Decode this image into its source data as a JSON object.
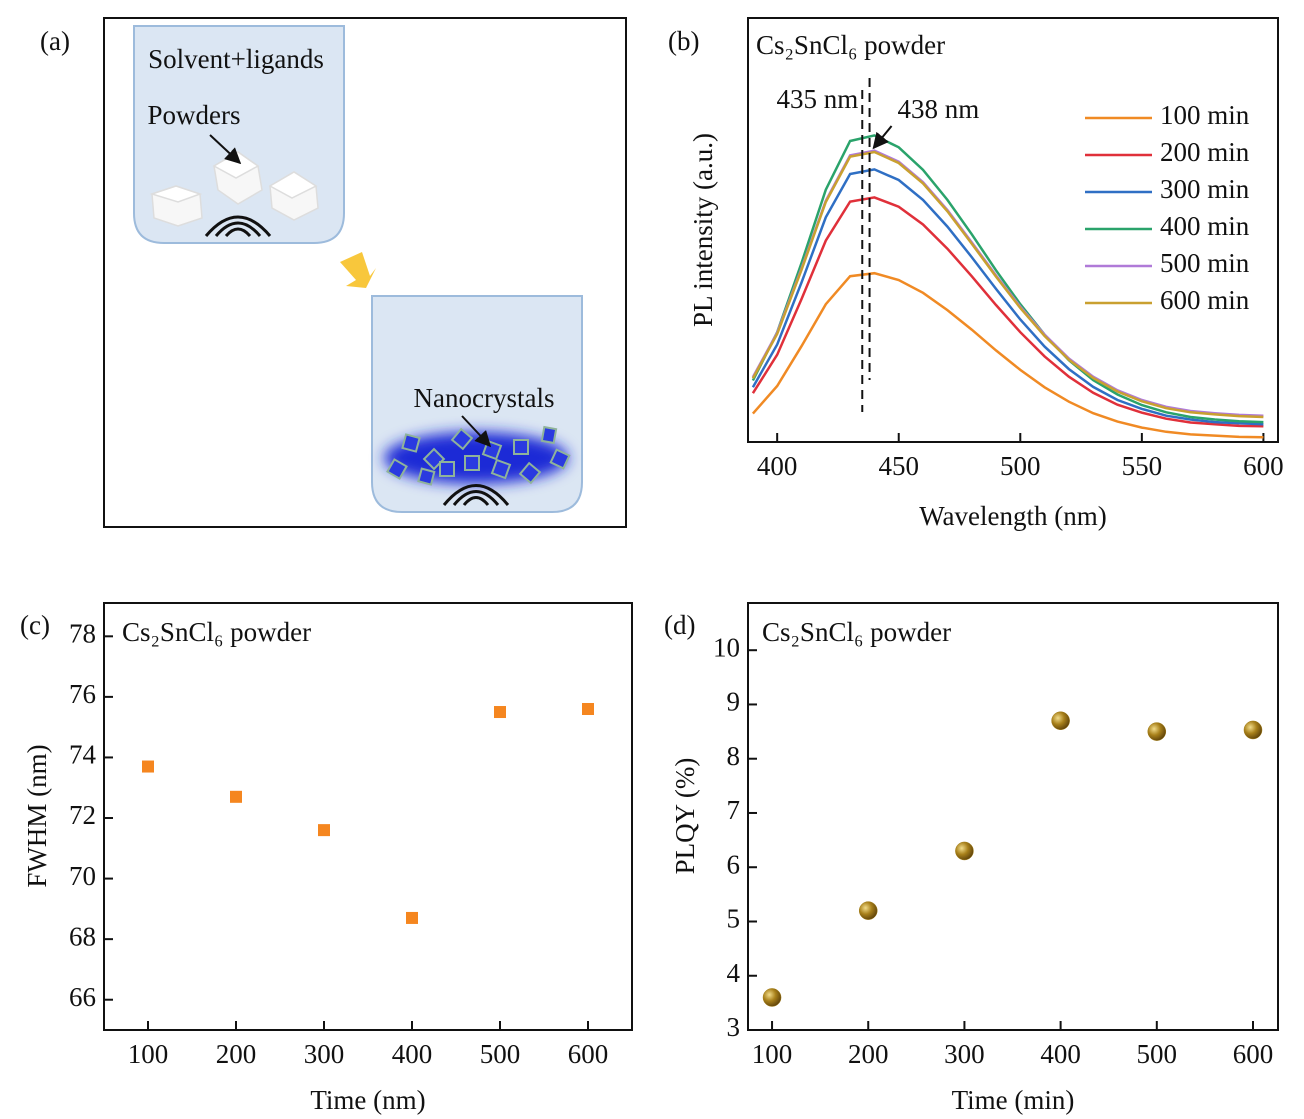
{
  "diagram": {
    "panel_label": "(a)",
    "solvent_label": "Solvent+ligands",
    "powder_label": "Powders",
    "product_label": "Nanocrystals"
  },
  "chart_data": [
    {
      "type": "line",
      "panel_label": "(b)",
      "title": "Cs₂SnCl₆ powder",
      "xlabel": "Wavelength (nm)",
      "ylabel": "PL intensity (a.u.)",
      "x": [
        390,
        400,
        410,
        420,
        430,
        440,
        450,
        460,
        470,
        480,
        490,
        500,
        510,
        520,
        530,
        540,
        550,
        560,
        570,
        580,
        590,
        600
      ],
      "xlim": [
        388,
        606
      ],
      "xticks": [
        400,
        450,
        500,
        550,
        600
      ],
      "ylim": [
        0,
        1
      ],
      "legend": "upper right",
      "series": [
        {
          "name": "100 min",
          "color": "#f08a24",
          "values": [
            0.067,
            0.132,
            0.226,
            0.325,
            0.391,
            0.398,
            0.382,
            0.352,
            0.311,
            0.265,
            0.216,
            0.17,
            0.129,
            0.095,
            0.068,
            0.048,
            0.034,
            0.024,
            0.018,
            0.015,
            0.012,
            0.011
          ]
        },
        {
          "name": "200 min",
          "color": "#e0303a",
          "values": [
            0.115,
            0.206,
            0.337,
            0.475,
            0.567,
            0.577,
            0.555,
            0.513,
            0.456,
            0.391,
            0.323,
            0.259,
            0.202,
            0.154,
            0.116,
            0.088,
            0.069,
            0.055,
            0.046,
            0.042,
            0.038,
            0.037
          ]
        },
        {
          "name": "300 min",
          "color": "#2f6fc4",
          "values": [
            0.129,
            0.23,
            0.376,
            0.53,
            0.632,
            0.643,
            0.618,
            0.571,
            0.508,
            0.436,
            0.361,
            0.289,
            0.225,
            0.172,
            0.13,
            0.099,
            0.078,
            0.062,
            0.053,
            0.047,
            0.044,
            0.042
          ]
        },
        {
          "name": "400 min",
          "color": "#2aa36b",
          "values": [
            0.145,
            0.259,
            0.422,
            0.595,
            0.71,
            0.723,
            0.695,
            0.642,
            0.571,
            0.49,
            0.405,
            0.325,
            0.253,
            0.193,
            0.146,
            0.112,
            0.087,
            0.07,
            0.059,
            0.053,
            0.049,
            0.047
          ]
        },
        {
          "name": "500 min",
          "color": "#b07ad8",
          "values": [
            0.153,
            0.258,
            0.409,
            0.569,
            0.676,
            0.687,
            0.661,
            0.613,
            0.547,
            0.471,
            0.393,
            0.319,
            0.253,
            0.197,
            0.154,
            0.122,
            0.099,
            0.083,
            0.073,
            0.068,
            0.064,
            0.062
          ]
        },
        {
          "name": "600 min",
          "color": "#c9a030",
          "values": [
            0.15,
            0.255,
            0.406,
            0.566,
            0.673,
            0.684,
            0.658,
            0.61,
            0.544,
            0.468,
            0.39,
            0.316,
            0.25,
            0.194,
            0.151,
            0.119,
            0.096,
            0.08,
            0.07,
            0.065,
            0.061,
            0.059
          ]
        }
      ],
      "annotations": [
        {
          "label": "435 nm",
          "x": 435
        },
        {
          "label": "438 nm",
          "x": 438
        }
      ]
    },
    {
      "type": "scatter",
      "panel_label": "(c)",
      "title": "Cs₂SnCl₆ powder",
      "xlabel": "Time (nm)",
      "ylabel": "FWHM (nm)",
      "marker": "square",
      "color": "#f5861f",
      "x": [
        100,
        200,
        300,
        400,
        500,
        600
      ],
      "values": [
        73.7,
        72.7,
        71.6,
        68.7,
        75.5,
        75.6
      ],
      "xlim": [
        50,
        650
      ],
      "xticks": [
        100,
        200,
        300,
        400,
        500,
        600
      ],
      "ylim": [
        65,
        79.1
      ],
      "yticks": [
        66,
        68,
        70,
        72,
        74,
        76,
        78
      ]
    },
    {
      "type": "scatter",
      "panel_label": "(d)",
      "title": "Cs₂SnCl₆ powder",
      "xlabel": "Time (min)",
      "ylabel": "PLQY (%)",
      "marker": "circle",
      "color": "#a07a12",
      "x": [
        100,
        200,
        300,
        400,
        500,
        600
      ],
      "values": [
        3.6,
        5.2,
        6.3,
        8.7,
        8.5,
        8.53
      ],
      "xlim": [
        75,
        626
      ],
      "xticks": [
        100,
        200,
        300,
        400,
        500,
        600
      ],
      "ylim": [
        3,
        10.87
      ],
      "yticks": [
        3,
        4,
        5,
        6,
        7,
        8,
        9,
        10
      ]
    }
  ]
}
